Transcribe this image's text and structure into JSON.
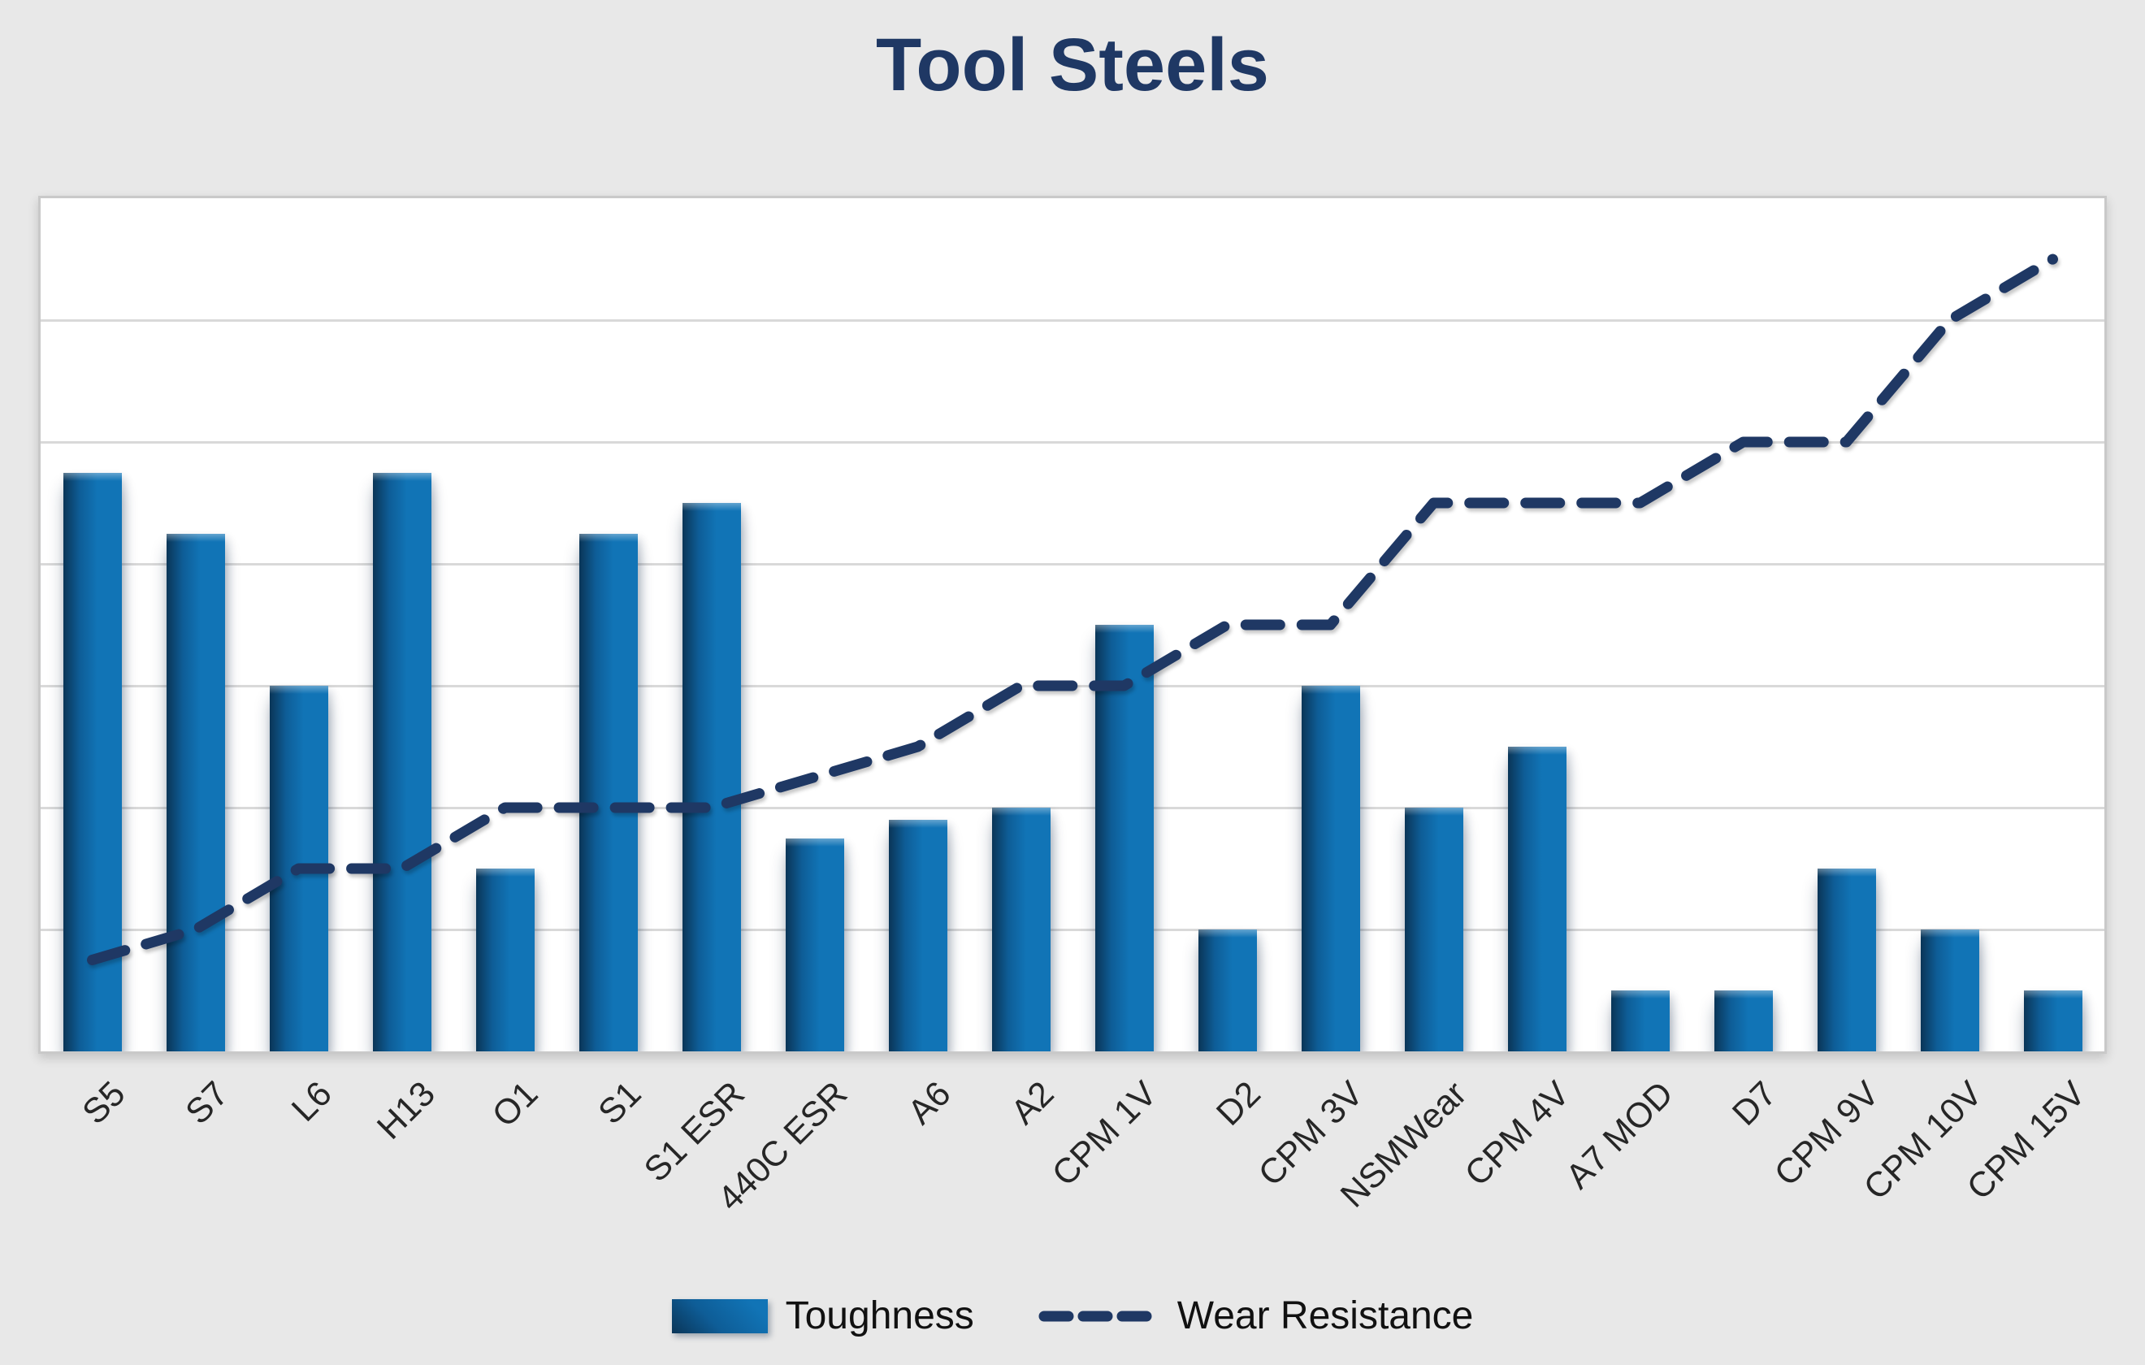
{
  "chart_data": {
    "type": "combo",
    "title": "Tool Steels",
    "categories": [
      "S5",
      "S7",
      "L6",
      "H13",
      "O1",
      "S1",
      "S1 ESR",
      "440C ESR",
      "A6",
      "A2",
      "CPM 1V",
      "D2",
      "CPM 3V",
      "NSMWear",
      "CPM 4V",
      "A7 MOD",
      "D7",
      "CPM 9V",
      "CPM 10V",
      "CPM 15V"
    ],
    "series": [
      {
        "name": "Toughness",
        "type": "bar",
        "values": [
          9.5,
          8.5,
          6,
          9.5,
          3,
          8.5,
          9,
          3.5,
          3.8,
          4,
          7,
          2,
          6,
          4,
          5,
          1,
          1,
          3,
          2,
          1
        ]
      },
      {
        "name": "Wear Resistance",
        "type": "line",
        "dashed": true,
        "values": [
          1.5,
          2,
          3,
          3,
          4,
          4,
          4,
          4.5,
          5,
          6,
          6,
          7,
          7,
          9,
          9,
          9,
          10,
          10,
          12,
          13
        ]
      }
    ],
    "ylim": [
      0,
      14
    ],
    "gridline_step": 2,
    "grid": "horizontal",
    "y_axis_labels_visible": false,
    "x_label_rotation_deg": -45,
    "legend_position": "bottom"
  },
  "colors": {
    "background": "#e8e8e8",
    "title": "#1f3864",
    "bar_main": "#1174b6",
    "bar_dark": "#0a3557",
    "line": "#1f3864",
    "gridline": "#d9d9d9",
    "plot_border": "#c9c9c9",
    "label_text": "#262626"
  }
}
